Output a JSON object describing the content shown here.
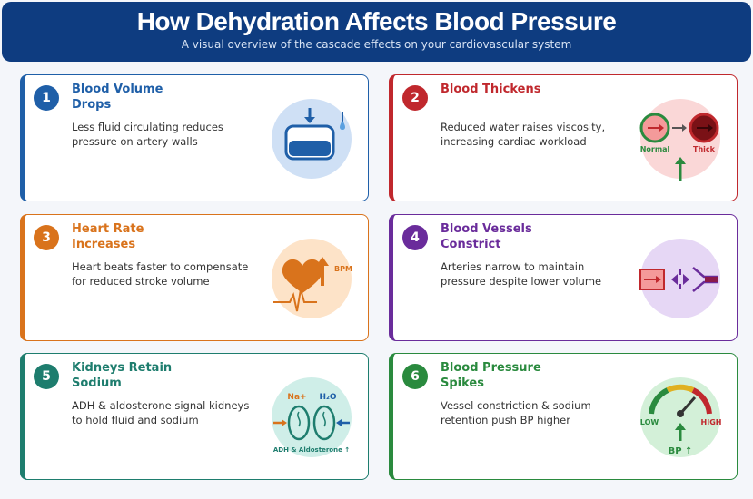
{
  "header": {
    "title": "How Dehydration Affects Blood Pressure",
    "subtitle": "A visual overview of the cascade effects on your cardiovascular system"
  },
  "cards": [
    {
      "number": 1,
      "title": "Blood Volume Drops",
      "description": "Less fluid circulating reduces pressure on artery walls"
    },
    {
      "number": 2,
      "title": "Blood Thickens",
      "description": "Reduced water raises viscosity, increasing cardiac workload",
      "icon_labels": [
        "Normal",
        "Thick"
      ]
    },
    {
      "number": 3,
      "title": "Heart Rate Increases",
      "description": "Heart beats faster to compensate for reduced stroke volume",
      "icon_labels": [
        "BPM"
      ]
    },
    {
      "number": 4,
      "title": "Blood Vessels Constrict",
      "description": "Arteries narrow to maintain pressure despite lower volume"
    },
    {
      "number": 5,
      "title": "Kidneys Retain Sodium",
      "description": "ADH & aldosterone signal kidneys to hold fluid and sodium",
      "icon_labels": [
        "Na+",
        "H₂O",
        "ADH & Aldosterone ↑"
      ]
    },
    {
      "number": 6,
      "title": "Blood Pressure Spikes",
      "description": "Vessel constriction & sodium retention push BP higher",
      "icon_labels": [
        "LOW",
        "HIGH",
        "BP ↑"
      ]
    }
  ]
}
